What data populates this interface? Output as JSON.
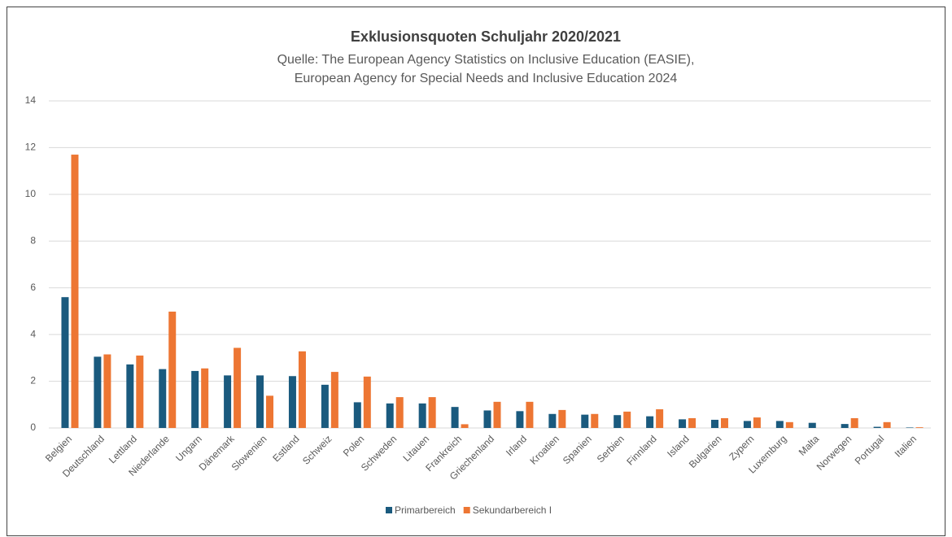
{
  "chart_data": {
    "type": "bar",
    "title": "Exklusionsquoten Schuljahr 2020/2021",
    "subtitle": [
      "Quelle: The European Agency Statistics on Inclusive Education (EASIE),",
      "European Agency for Special Needs and Inclusive Education 2024"
    ],
    "categories": [
      "Belgien",
      "Deutschland",
      "Lettland",
      "Niederlande",
      "Ungarn",
      "Dänemark",
      "Slowenien",
      "Estland",
      "Schweiz",
      "Polen",
      "Schweden",
      "Litauen",
      "Frankreich",
      "Griechenland",
      "Irland",
      "Kroatien",
      "Spanien",
      "Serbien",
      "Finnland",
      "Island",
      "Bulgarien",
      "Zypern",
      "Luxemburg",
      "Malta",
      "Norwegen",
      "Portugal",
      "Italien"
    ],
    "series": [
      {
        "name": "Primarbereich",
        "color": "#1a5a7e",
        "values": [
          5.6,
          3.05,
          2.72,
          2.52,
          2.44,
          2.25,
          2.25,
          2.22,
          1.85,
          1.1,
          1.05,
          1.05,
          0.9,
          0.75,
          0.72,
          0.6,
          0.57,
          0.55,
          0.5,
          0.37,
          0.35,
          0.3,
          0.3,
          0.22,
          0.17,
          0.05,
          0.02
        ]
      },
      {
        "name": "Sekundarbereich I",
        "color": "#ed7633",
        "values": [
          11.7,
          3.15,
          3.1,
          4.98,
          2.55,
          3.43,
          1.38,
          3.28,
          2.4,
          2.2,
          1.32,
          1.32,
          0.16,
          1.12,
          1.12,
          0.77,
          0.6,
          0.7,
          0.8,
          0.42,
          0.42,
          0.45,
          0.25,
          0,
          0.42,
          0.25,
          0.03
        ]
      }
    ],
    "ylim": [
      0,
      14
    ],
    "yticks": [
      0,
      2,
      4,
      6,
      8,
      10,
      12,
      14
    ],
    "grid": true,
    "legend": "bottom"
  }
}
